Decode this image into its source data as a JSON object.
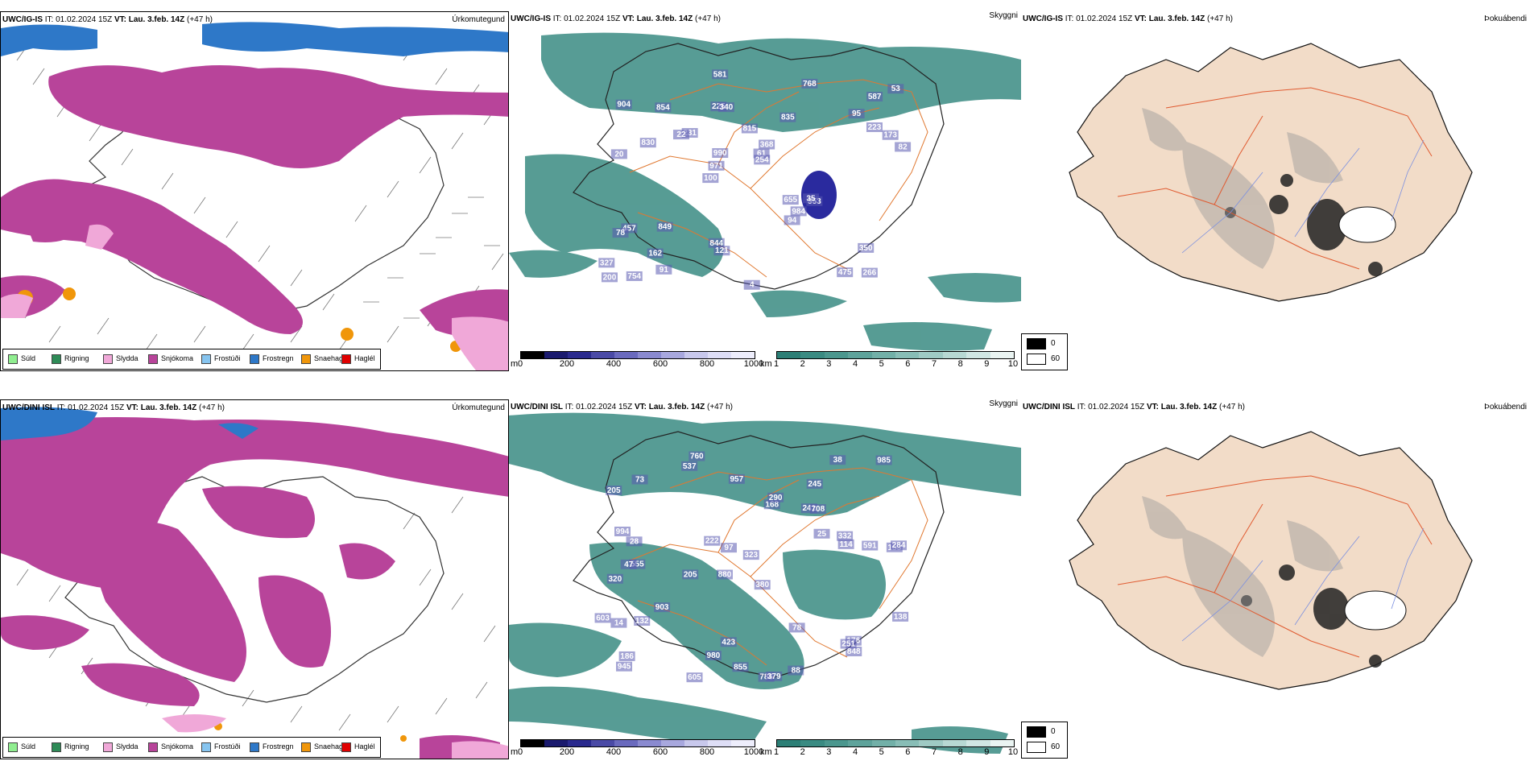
{
  "rows": [
    {
      "model": "UWC/IG-IS",
      "it_label": "IT:",
      "it_value": "01.02.2024 15Z",
      "vt_label": "VT:",
      "vt_value": "Lau. 3.feb. 14Z",
      "lead": "(+47 h)",
      "left_title": "Úrkomutegund",
      "mid_title": "Skyggni",
      "right_title": "Þokuábendi",
      "cloud_numbers": [
        "266",
        "20",
        "587",
        "100",
        "835",
        "754",
        "225",
        "815",
        "457",
        "231",
        "327",
        "162",
        "340",
        "368",
        "353",
        "904",
        "581",
        "82",
        "655",
        "223",
        "971",
        "844",
        "990",
        "854",
        "768",
        "849",
        "475",
        "350",
        "35",
        "4",
        "22",
        "830",
        "94",
        "91",
        "173",
        "61",
        "200",
        "121",
        "254",
        "78",
        "95",
        "53",
        "984"
      ]
    },
    {
      "model": "UWC/DINI ISL",
      "it_label": "IT:",
      "it_value": "01.02.2024 15Z",
      "vt_label": "VT:",
      "vt_value": "Lau. 3.feb. 14Z",
      "lead": "(+47 h)",
      "left_title": "Úrkomutegund",
      "mid_title": "Skyggni",
      "right_title": "Þokuábendi",
      "cloud_numbers": [
        "760",
        "245",
        "153",
        "880",
        "380",
        "555",
        "205",
        "241",
        "320",
        "168",
        "323",
        "945",
        "537",
        "205",
        "786",
        "379",
        "423",
        "38",
        "25",
        "903",
        "28",
        "47",
        "284",
        "591",
        "603",
        "994",
        "97",
        "114",
        "176",
        "14",
        "251",
        "290",
        "132",
        "222",
        "78",
        "138",
        "332",
        "980",
        "985",
        "957",
        "186",
        "605",
        "88",
        "73",
        "855",
        "708",
        "848"
      ]
    }
  ],
  "precip_legend": [
    {
      "label": "Súld",
      "color": "#90ee90"
    },
    {
      "label": "Rigning",
      "color": "#2e8b57"
    },
    {
      "label": "Slydda",
      "color": "#f0a8d8"
    },
    {
      "label": "Snjókoma",
      "color": "#b8449a"
    },
    {
      "label": "Frostúði",
      "color": "#87c5f0"
    },
    {
      "label": "Frostregn",
      "color": "#2e78c8"
    },
    {
      "label": "Snaehagl",
      "color": "#f0960a"
    },
    {
      "label": "Haglél",
      "color": "#e00000"
    }
  ],
  "cloud_scale": {
    "unit": "m",
    "ticks": [
      "0",
      "200",
      "400",
      "600",
      "800",
      "1000"
    ],
    "colors": [
      "#000000",
      "#1a1a6e",
      "#2a2a8e",
      "#4a4aa6",
      "#6a6abe",
      "#8a8ad0",
      "#a8a8de",
      "#c8c8ec",
      "#dedef6",
      "#eeeefc"
    ]
  },
  "vis_scale": {
    "unit": "km",
    "ticks": [
      "1",
      "2",
      "3",
      "4",
      "5",
      "6",
      "7",
      "8",
      "9",
      "10"
    ],
    "colors": [
      "#2c7f76",
      "#3a8b82",
      "#4b978e",
      "#5ea39b",
      "#72b0a8",
      "#88bdb6",
      "#9fcac4",
      "#b7d8d3",
      "#d0e6e3",
      "#eaf4f2"
    ]
  },
  "fog_legend": [
    {
      "label": "0",
      "color": "#000000"
    },
    {
      "label": "60",
      "color": "#ffffff"
    }
  ],
  "colors": {
    "snow": "#b8449a",
    "freezing_rain": "#2e78c8",
    "hail_ice": "#f0960a",
    "sleet": "#f0a8d8",
    "visibility": "#3a8b82",
    "cloud_base": "#2a2a9e",
    "roads": "#e07830",
    "land": "#f2dcc8"
  }
}
